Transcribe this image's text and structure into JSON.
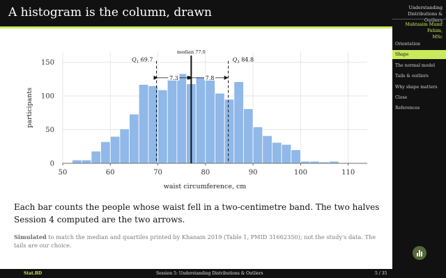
{
  "header": {
    "title": "A histogram is the column, drawn"
  },
  "sidebar": {
    "title_line1": "Understanding",
    "title_line2": "Distributions & Outliers",
    "author_line1": "Mahtasim Munif Fahim,",
    "author_line2": "MSc",
    "nav": [
      {
        "label": "Orientation",
        "active": false
      },
      {
        "label": "Shape",
        "active": true
      },
      {
        "label": "The normal model",
        "active": false
      },
      {
        "label": "Tails & outliers",
        "active": false
      },
      {
        "label": "Why shape matters",
        "active": false
      },
      {
        "label": "Close",
        "active": false
      },
      {
        "label": "References",
        "active": false
      }
    ],
    "button_icon": "bar-chart-icon"
  },
  "footer": {
    "brand": "Stat.BD",
    "session": "Session 5: Understanding Distributions & Outliers",
    "page": "5 / 35"
  },
  "caption": "Each bar counts the people whose waist fell in a two-centimetre band. The two halves Session 4 computed are the two arrows.",
  "note": {
    "lead": "Simulated",
    "text": "to match the median and quartiles printed by Khanam 2019 (Table 1, PMID 31662350); not the study's data. The tails are our choice."
  },
  "chart_data": {
    "type": "bar",
    "bin_width": 2,
    "bin_edges_start": 52,
    "values": [
      5,
      5,
      18,
      32,
      40,
      51,
      73,
      117,
      115,
      109,
      125,
      133,
      118,
      128,
      124,
      104,
      95,
      121,
      81,
      54,
      41,
      31,
      28,
      20,
      3,
      3,
      2,
      3
    ],
    "xlim": [
      50,
      114
    ],
    "ylim": [
      0,
      165
    ],
    "xticks": [
      50,
      60,
      70,
      80,
      90,
      100,
      110
    ],
    "yticks": [
      0,
      50,
      100,
      150
    ],
    "xlabel": "waist circumference, cm",
    "ylabel": "participants",
    "grid": true,
    "bar_color": "#90b8e8",
    "annotations": {
      "median": {
        "value": 77.0,
        "label": "median",
        "value_label": "77.0"
      },
      "q1": {
        "value": 69.7,
        "label": "Q",
        "sub": "1",
        "value_label": "69.7"
      },
      "q3": {
        "value": 84.8,
        "label": "Q",
        "sub": "3",
        "value_label": "84.8"
      },
      "left_half": "7.3",
      "right_half": "7.8"
    }
  }
}
